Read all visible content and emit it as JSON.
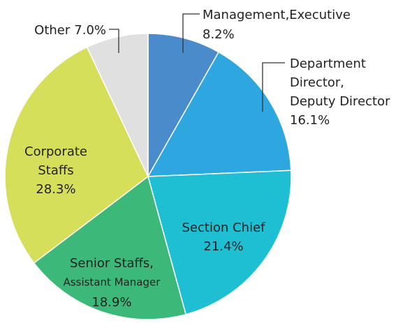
{
  "chart_data": {
    "type": "pie",
    "categories": [
      [
        "Management,Executive"
      ],
      [
        "Department",
        "Director,",
        "Deputy Director"
      ],
      [
        "Section Chief"
      ],
      [
        "Senior Staffs,",
        "Assistant Manager"
      ],
      [
        "Corporate",
        "Staffs"
      ],
      [
        "Other"
      ]
    ],
    "values": [
      8.2,
      16.1,
      21.4,
      18.9,
      28.3,
      7.0
    ],
    "value_labels": [
      "8.2%",
      "16.1%",
      "21.4%",
      "18.9%",
      "28.3%",
      "7.0%"
    ],
    "colors": [
      "#4a8ccb",
      "#2ea6e0",
      "#1fbfd3",
      "#3cb878",
      "#d5df5a",
      "#e0e0e0"
    ]
  }
}
